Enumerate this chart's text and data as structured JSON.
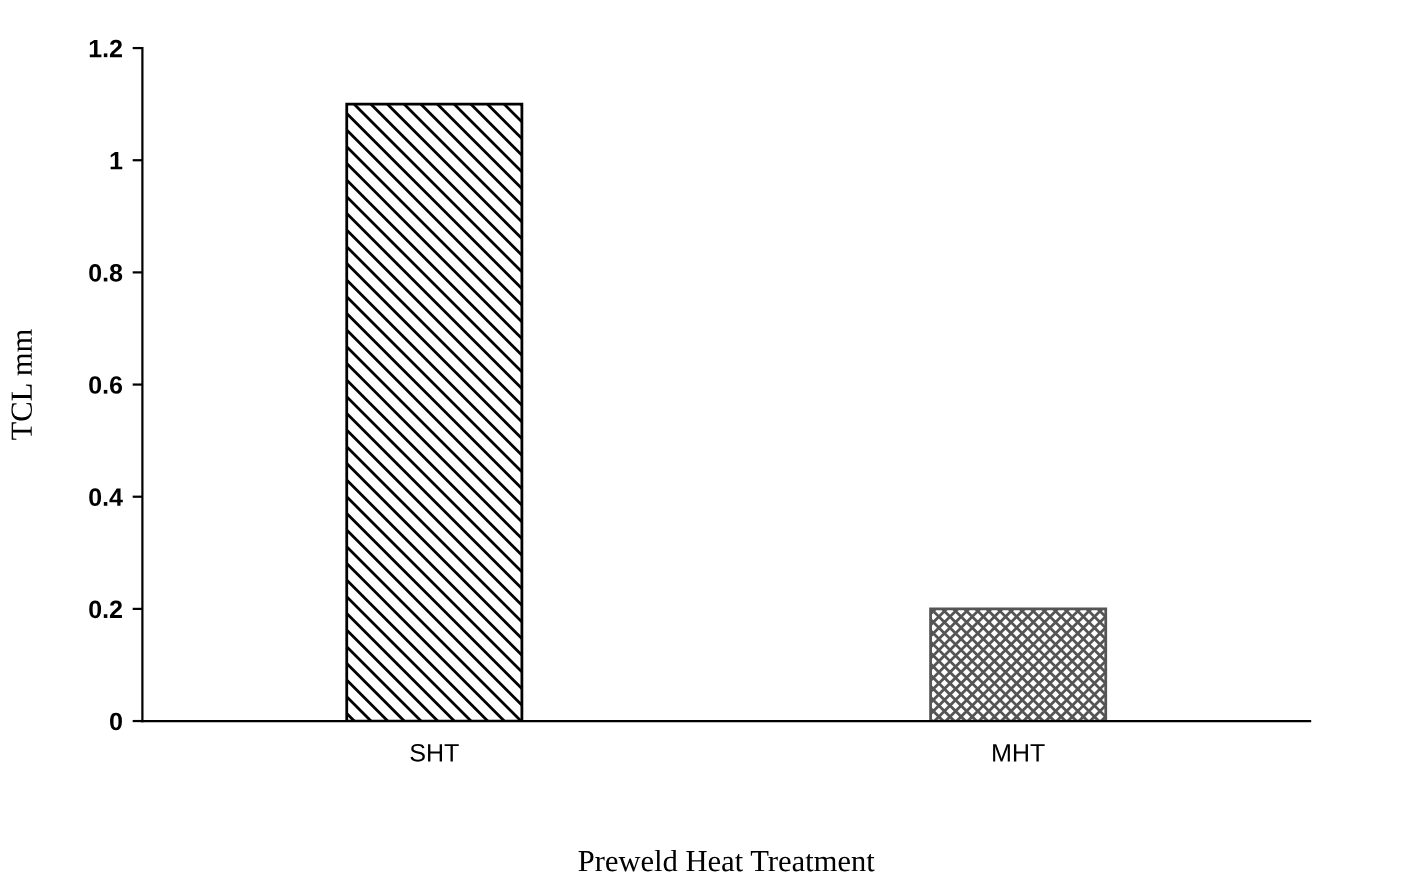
{
  "chart_data": {
    "type": "bar",
    "xlabel": "Preweld Heat Treatment",
    "ylabel": "TCL mm",
    "categories": [
      "SHT",
      "MHT"
    ],
    "values": [
      1.1,
      0.2
    ],
    "colors": [
      "#000000",
      "#555555"
    ],
    "ylim": [
      0,
      1.2
    ],
    "yticks": [
      0,
      0.2,
      0.4,
      0.6,
      0.8,
      1,
      1.2
    ],
    "grid": false
  }
}
